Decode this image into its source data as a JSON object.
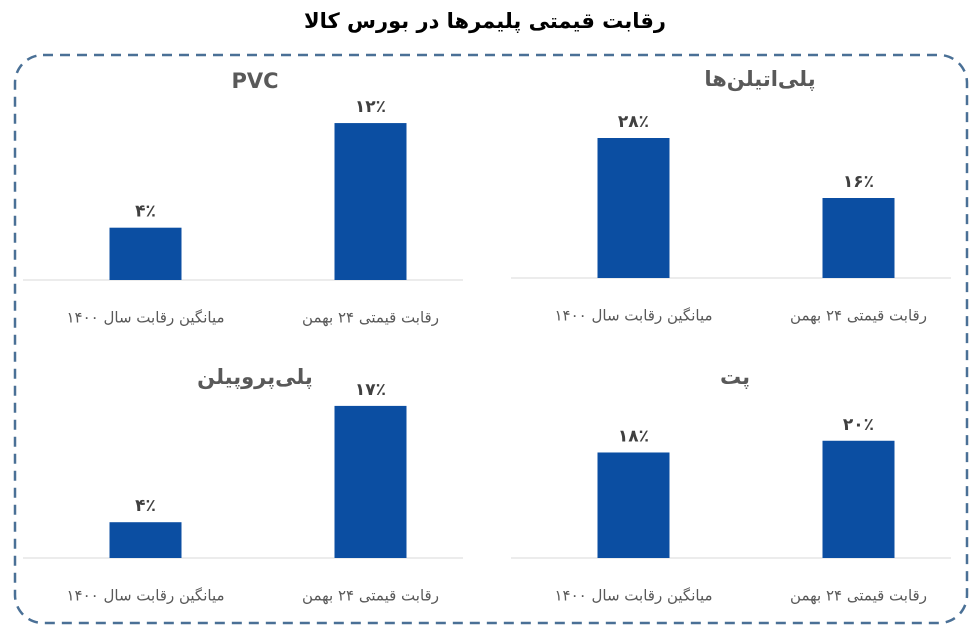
{
  "title": "رقابت قیمتی پلیمرها در بورس کالا",
  "chart_data": [
    {
      "type": "bar",
      "title": "پلی‌اتیلن‌ها",
      "categories": [
        "میانگین رقابت سال ۱۴۰۰",
        "رقابت قیمتی ۲۴ بهمن"
      ],
      "values": [
        28,
        16
      ],
      "value_labels": [
        "۲۸٪",
        "۱۶٪"
      ],
      "color": "#0b4ea2",
      "ylim": [
        0,
        34
      ]
    },
    {
      "type": "bar",
      "title": "PVC",
      "categories": [
        "میانگین رقابت سال ۱۴۰۰",
        "رقابت قیمتی ۲۴ بهمن"
      ],
      "values": [
        4,
        12
      ],
      "value_labels": [
        "۴٪",
        "۱۲٪"
      ],
      "color": "#0b4ea2",
      "ylim": [
        0,
        13
      ]
    },
    {
      "type": "bar",
      "title": "پلی‌پروپیلن",
      "categories": [
        "میانگین رقابت سال ۱۴۰۰",
        "رقابت قیمتی ۲۴ بهمن"
      ],
      "values": [
        4,
        17
      ],
      "value_labels": [
        "۴٪",
        "۱۷٪"
      ],
      "color": "#0b4ea2",
      "ylim": [
        0,
        19
      ]
    },
    {
      "type": "bar",
      "title": "پت",
      "categories": [
        "میانگین رقابت سال ۱۴۰۰",
        "رقابت قیمتی ۲۴ بهمن"
      ],
      "values": [
        18,
        20
      ],
      "value_labels": [
        "۱۸٪",
        "۲۰٪"
      ],
      "color": "#0b4ea2",
      "ylim": [
        0,
        29
      ]
    }
  ]
}
